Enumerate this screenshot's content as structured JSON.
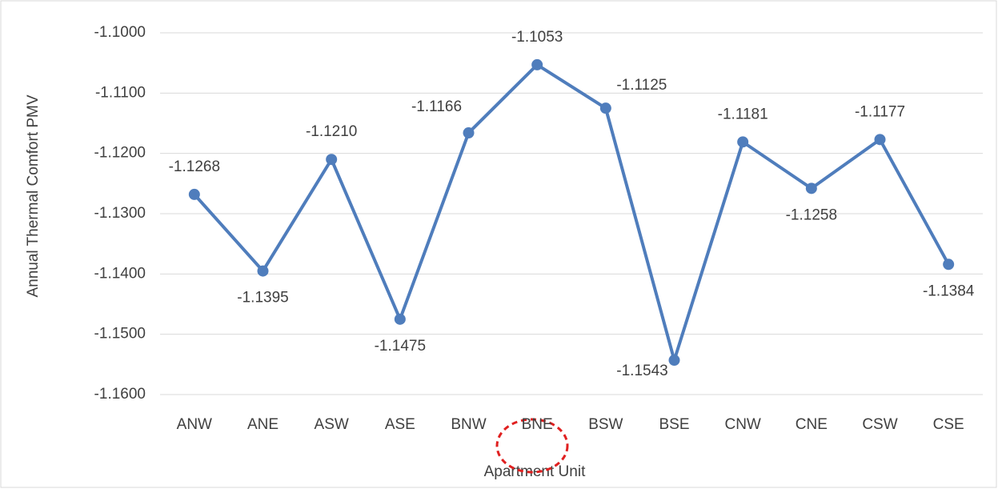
{
  "chart_data": {
    "type": "line",
    "x_label": "Apartment Unit",
    "y_label": "Annual Thermal Comfort PMV",
    "categories": [
      "ANW",
      "ANE",
      "ASW",
      "ASE",
      "BNW",
      "BNE",
      "BSW",
      "BSE",
      "CNW",
      "CNE",
      "CSW",
      "CSE"
    ],
    "series": [
      {
        "color": "#4f7dbc",
        "values": [
          -1.1268,
          -1.1395,
          -1.121,
          -1.1475,
          -1.1166,
          -1.1053,
          -1.1125,
          -1.1543,
          -1.1181,
          -1.1258,
          -1.1177,
          -1.1384
        ],
        "value_labels": [
          "-1.1268",
          "-1.1395",
          "-1.1210",
          "-1.1475",
          "-1.1166",
          "-1.1053",
          "-1.1125",
          "-1.1543",
          "-1.1181",
          "-1.1258",
          "-1.1177",
          "-1.1384"
        ]
      }
    ],
    "ylim": [
      -1.16,
      -1.1
    ],
    "yticks": [
      {
        "value": -1.1,
        "label": "-1.1000"
      },
      {
        "value": -1.11,
        "label": "-1.1100"
      },
      {
        "value": -1.12,
        "label": "-1.1200"
      },
      {
        "value": -1.13,
        "label": "-1.1300"
      },
      {
        "value": -1.14,
        "label": "-1.1400"
      },
      {
        "value": -1.15,
        "label": "-1.1500"
      },
      {
        "value": -1.16,
        "label": "-1.1600"
      }
    ],
    "grid": true
  }
}
